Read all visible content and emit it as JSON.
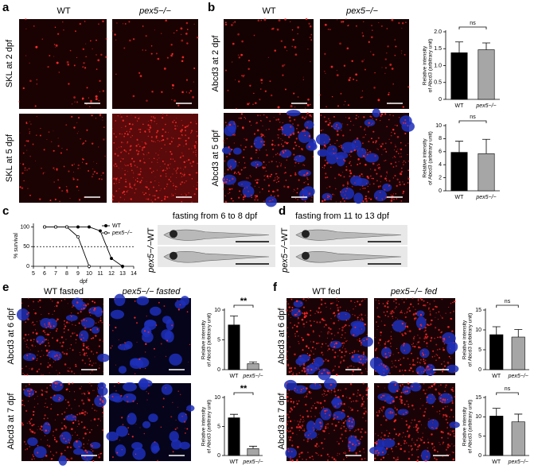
{
  "letters": [
    "a",
    "b",
    "c",
    "d",
    "e",
    "f"
  ],
  "panel_a": {
    "columns": [
      "WT",
      "pex5−/−"
    ],
    "rows": [
      "SKL at 2 dpf",
      "SKL at 5 dpf"
    ]
  },
  "panel_b": {
    "columns": [
      "WT",
      "pex5−/−"
    ],
    "rows": [
      "Abcd3 at 2 dpf",
      "Abcd3 at 5 dpf"
    ]
  },
  "panel_c": {
    "title": "fasting from 6 to 8 dpf",
    "rows": [
      "WT",
      "pex5−/−"
    ]
  },
  "panel_d": {
    "title": "fasting from 11 to 13 dpf",
    "rows": [
      "WT",
      "pex5−/−"
    ]
  },
  "panel_e": {
    "columns": [
      "WT fasted",
      "pex5−/− fasted"
    ],
    "rows": [
      "Abcd3 at 6 dpf",
      "Abcd3 at 7 dpf"
    ]
  },
  "panel_f": {
    "columns": [
      "WT fed",
      "pex5−/− fed"
    ],
    "rows": [
      "Abcd3 at 6 dpf",
      "Abcd3 at 7 dpf"
    ]
  },
  "chart_data": [
    {
      "type": "bar",
      "ylabel": [
        "Relative intensity",
        "of Abcd3 (arbitrary unit)"
      ],
      "categories": [
        "WT",
        "pex5−/−"
      ],
      "values": [
        1.38,
        1.47
      ],
      "errors": [
        0.32,
        0.2
      ],
      "colors": [
        "#000000",
        "#a6a6a6"
      ],
      "ylim": [
        0,
        2
      ],
      "yticks": [
        0,
        0.5,
        {
          "value": 1,
          "label": "1.0"
        },
        1.5,
        {
          "value": 2,
          "label": "2.0"
        }
      ],
      "annotation": "ns"
    },
    {
      "type": "bar",
      "ylabel": [
        "Relative intensity",
        "of Abcd3 (arbitrary unit)"
      ],
      "categories": [
        "WT",
        "pex5−/−"
      ],
      "values": [
        5.9,
        5.7
      ],
      "errors": [
        1.7,
        2.2
      ],
      "colors": [
        "#000000",
        "#a6a6a6"
      ],
      "ylim": [
        0,
        10
      ],
      "yticks": [
        0,
        2,
        4,
        6,
        8,
        10
      ],
      "annotation": "ns"
    },
    {
      "type": "line",
      "ylabel": "% survival",
      "xlabel": "dpf",
      "x": [
        6,
        7,
        8,
        9,
        10,
        11,
        12,
        13
      ],
      "series": [
        {
          "name": "WT",
          "color": "#000000",
          "values": [
            100,
            100,
            100,
            100,
            100,
            90,
            20,
            0
          ]
        },
        {
          "name": "pex5−/−",
          "color": "#000000",
          "values": [
            100,
            100,
            100,
            75,
            0,
            null,
            null,
            null
          ]
        }
      ],
      "xlim": [
        5,
        14
      ],
      "xticks": [
        5,
        6,
        7,
        8,
        9,
        10,
        11,
        12,
        13,
        14
      ],
      "ylim": [
        0,
        105
      ],
      "yticks": [
        0,
        50,
        100
      ],
      "hline": 50
    },
    {
      "type": "bar",
      "ylabel": [
        "Relative intensity",
        "of Abcd3 (arbitrary unit)"
      ],
      "categories": [
        "WT",
        "pex5−/−"
      ],
      "values": [
        7.5,
        1.0
      ],
      "errors": [
        1.5,
        0.3
      ],
      "colors": [
        "#000000",
        "#a6a6a6"
      ],
      "ylim": [
        0,
        10
      ],
      "yticks": [
        0,
        5,
        10
      ],
      "annotation": "**"
    },
    {
      "type": "bar",
      "ylabel": [
        "Relative intensity",
        "of Abcd3 (arbitrary unit)"
      ],
      "categories": [
        "WT",
        "pex5−/−"
      ],
      "values": [
        6.5,
        1.2
      ],
      "errors": [
        0.6,
        0.4
      ],
      "colors": [
        "#000000",
        "#a6a6a6"
      ],
      "ylim": [
        0,
        10
      ],
      "yticks": [
        0,
        5,
        10
      ],
      "annotation": "**"
    },
    {
      "type": "bar",
      "ylabel": [
        "Relative intensity",
        "of Abcd3 (arbitrary unit)"
      ],
      "categories": [
        "WT",
        "pex5−/−"
      ],
      "values": [
        8.8,
        8.2
      ],
      "errors": [
        2.0,
        1.9
      ],
      "colors": [
        "#000000",
        "#a6a6a6"
      ],
      "ylim": [
        0,
        15
      ],
      "yticks": [
        0,
        5,
        10,
        15
      ],
      "annotation": "ns"
    },
    {
      "type": "bar",
      "ylabel": [
        "Relative intensity",
        "of Abcd3 (arbitrary unit)"
      ],
      "categories": [
        "WT",
        "pex5−/−"
      ],
      "values": [
        10.2,
        8.7
      ],
      "errors": [
        2.0,
        2.0
      ],
      "colors": [
        "#000000",
        "#a6a6a6"
      ],
      "ylim": [
        0,
        15
      ],
      "yticks": [
        0,
        5,
        10,
        15
      ],
      "annotation": "ns"
    }
  ]
}
